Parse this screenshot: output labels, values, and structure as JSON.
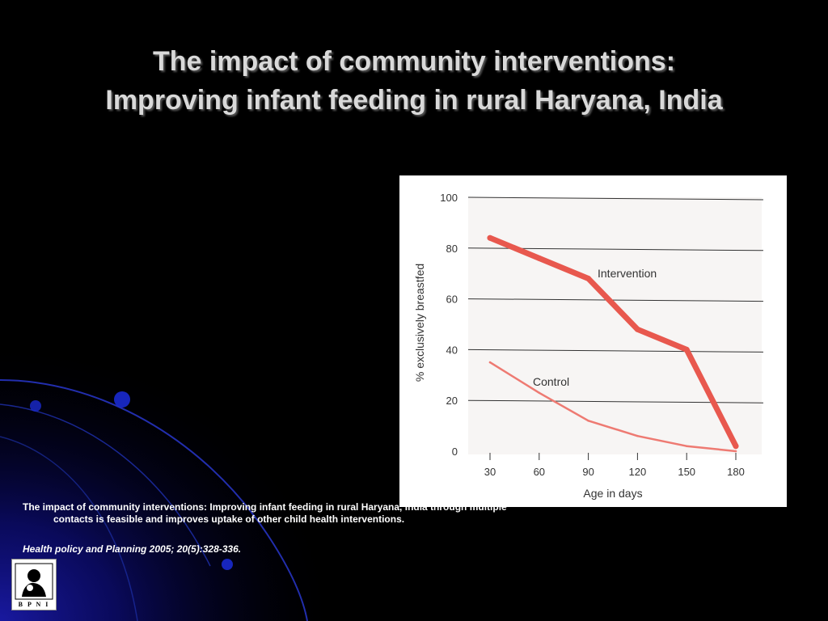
{
  "slide": {
    "title_line1": "The impact of community interventions:",
    "title_line2": "Improving infant feeding in rural Haryana, India",
    "caption_line1": "The impact of community interventions: Improving infant feeding in rural Haryana, India through multiple",
    "caption_line2": "contacts is feasible and improves uptake of other child health interventions.",
    "citation": "Health policy and Planning 2005; 20(5):328-336.",
    "logo_text": "B P N I"
  },
  "colors": {
    "background": "#000000",
    "title": "#d9d9d9",
    "intervention_line": "#e8584e",
    "control_line": "#ee7a72",
    "accent_blue": "#1a2dc8"
  },
  "chart_data": {
    "type": "line",
    "title": "",
    "xlabel": "Age in days",
    "ylabel": "% exclusively breastfed",
    "x": [
      30,
      60,
      90,
      120,
      150,
      180
    ],
    "x_ticks": [
      "30",
      "60",
      "90",
      "120",
      "150",
      "180"
    ],
    "y_ticks": [
      "0",
      "20",
      "40",
      "60",
      "80",
      "100"
    ],
    "xlim": [
      30,
      180
    ],
    "ylim": [
      0,
      100
    ],
    "grid": "horizontal",
    "series": [
      {
        "name": "Intervention",
        "values": [
          84,
          76,
          68,
          48,
          40,
          2
        ]
      },
      {
        "name": "Control",
        "values": [
          35,
          23,
          12,
          6,
          2,
          0
        ]
      }
    ]
  }
}
